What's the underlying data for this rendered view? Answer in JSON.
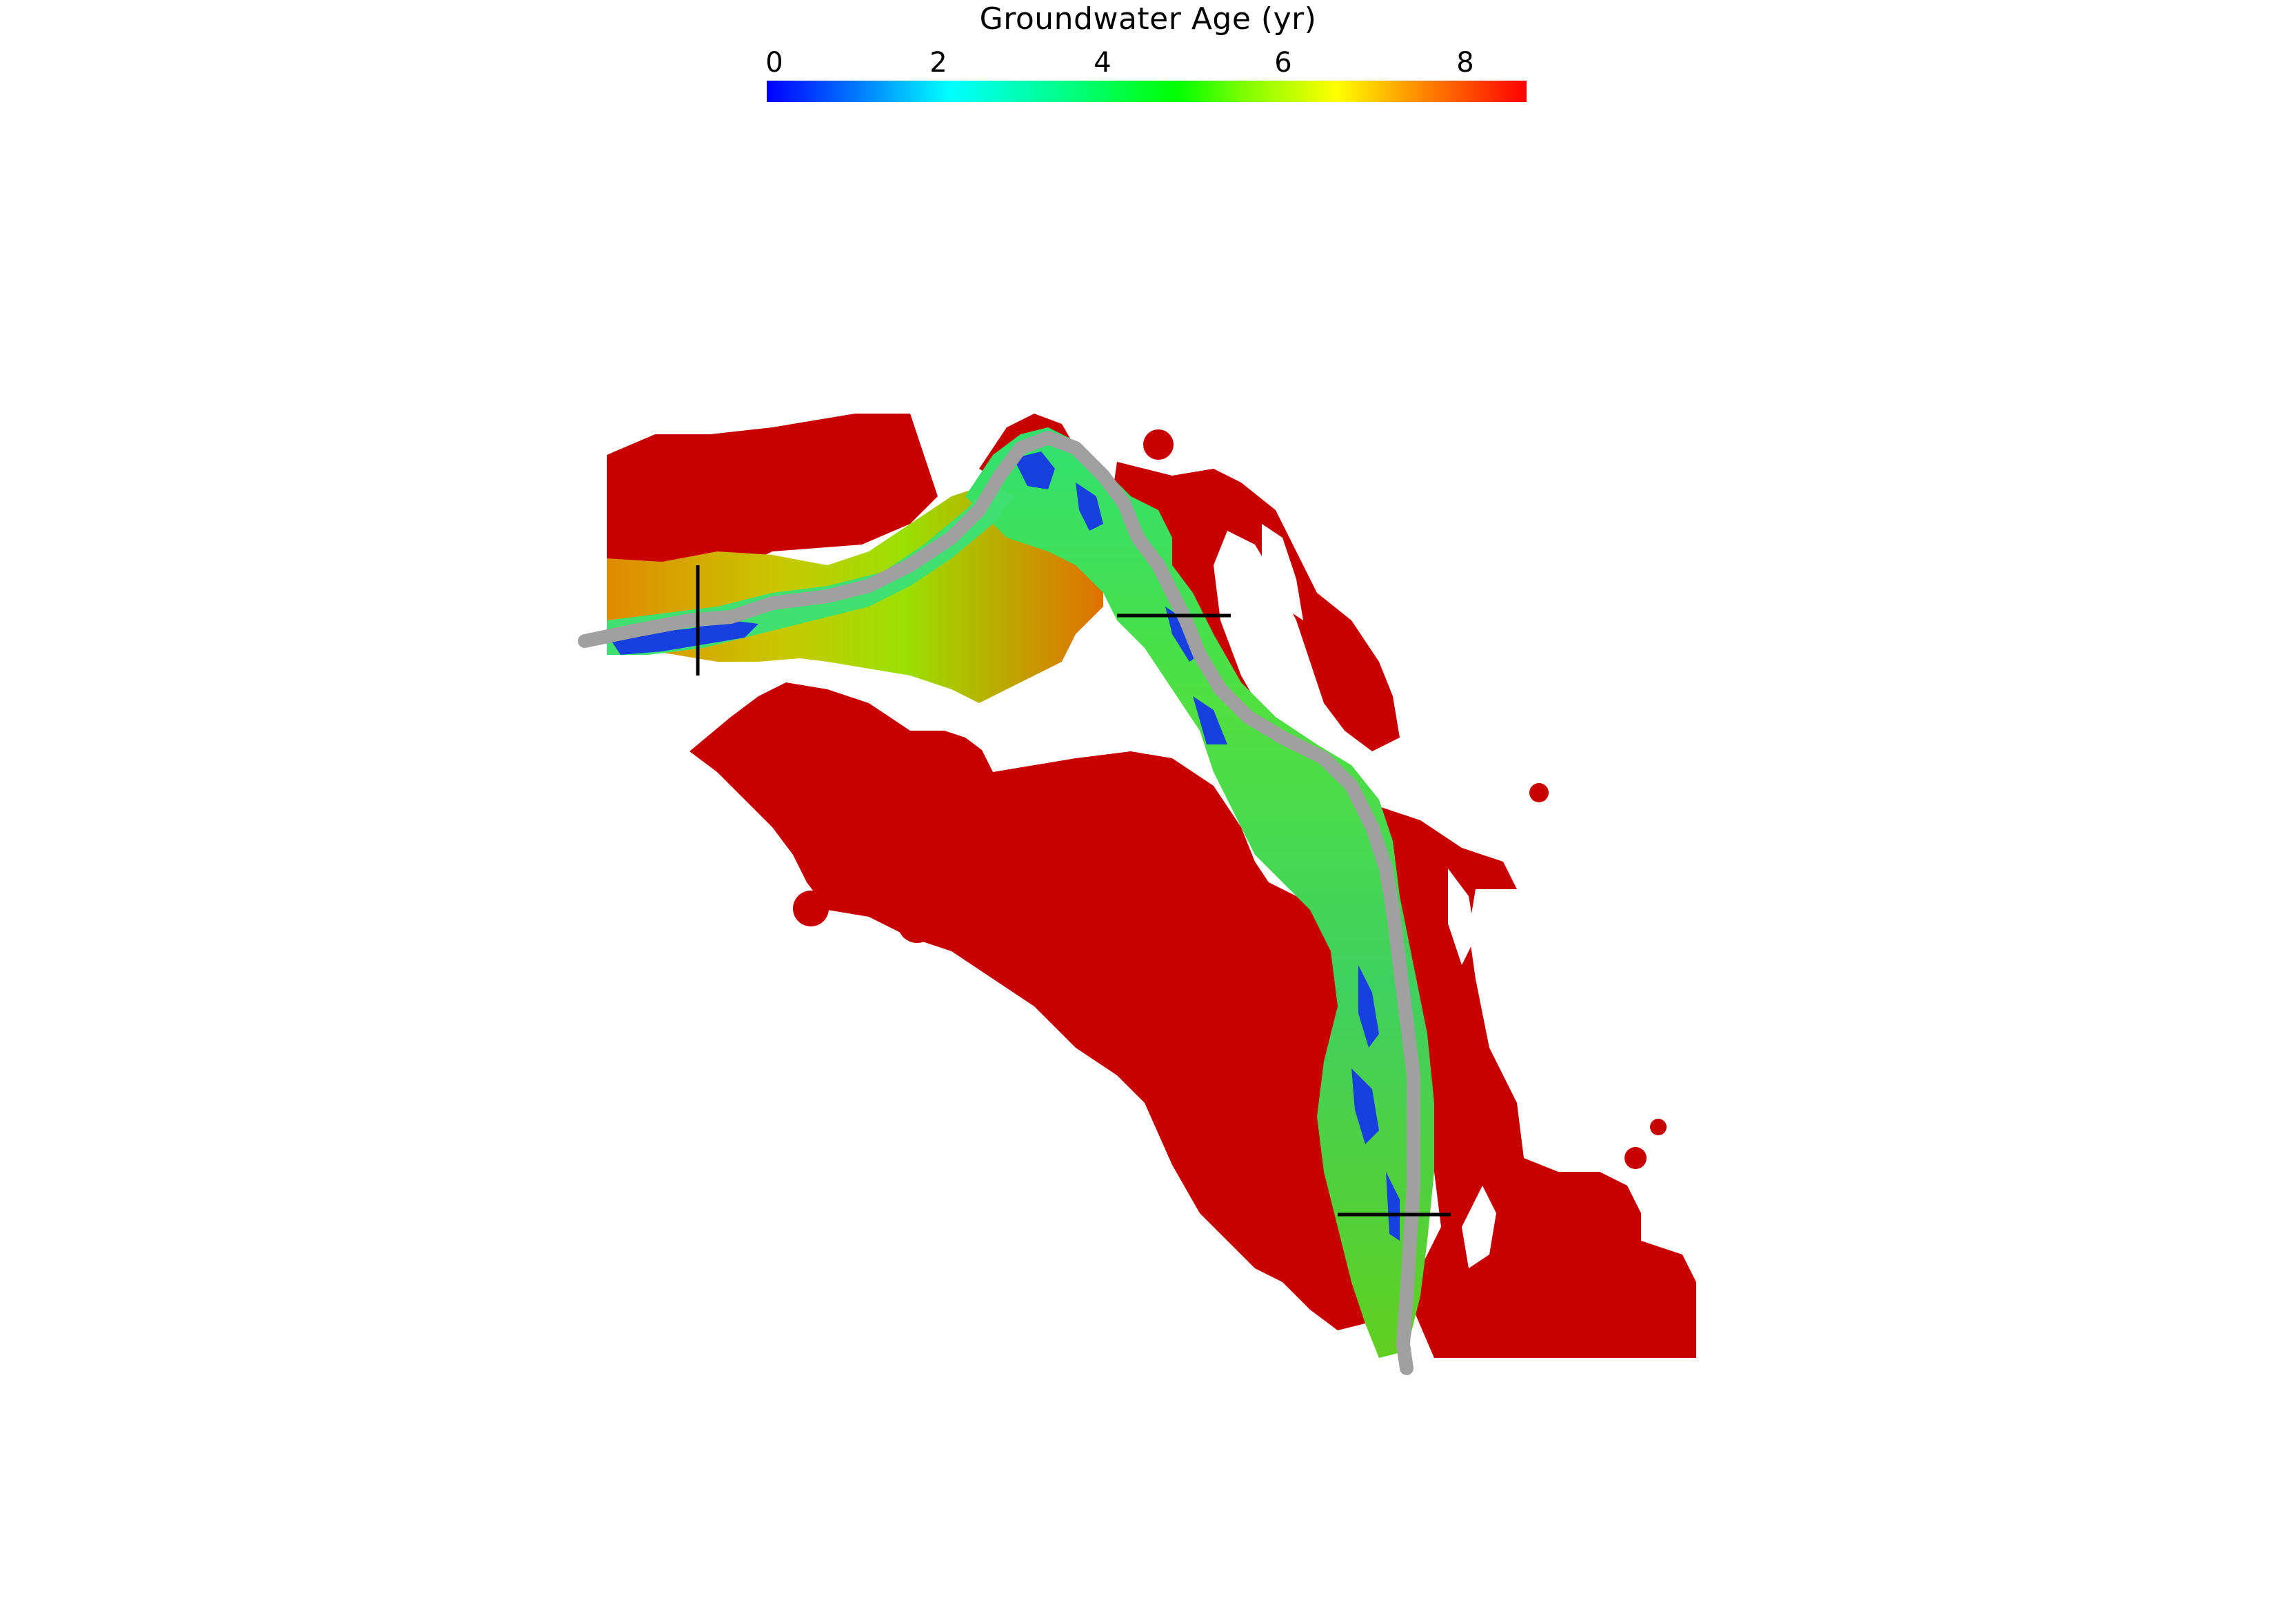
{
  "colorbar": {
    "title": "Groundwater Age (yr)",
    "ticks": [
      "0",
      "2",
      "4",
      "6",
      "8"
    ],
    "min": 0,
    "max": 8.5,
    "colormap": [
      "#0000ff",
      "#00ffff",
      "#00ff00",
      "#ffff00",
      "#ff0000"
    ]
  },
  "colors": {
    "old_age": "#c80000",
    "river": "#a0a0a0",
    "transect": "#000000",
    "background": "#ffffff"
  }
}
